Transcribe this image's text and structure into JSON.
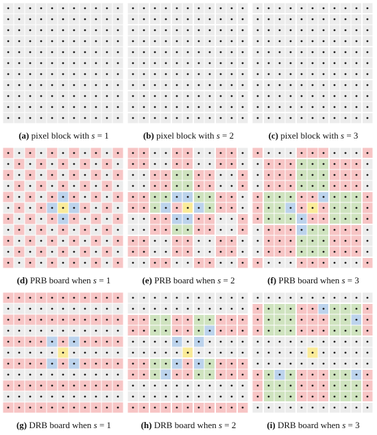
{
  "colors": {
    "gray": "#ececec",
    "red": "#f7c5c5",
    "green": "#cfe3bf",
    "blue": "#bcd3ec",
    "yellow": "#faeb99",
    "dot": "#1a1a1a",
    "gap": "#ffffff"
  },
  "board": {
    "rows": 11,
    "cols": 11,
    "center": [
      5,
      5
    ]
  },
  "panels": [
    {
      "id": "a",
      "letter": "(a)",
      "text": "pixel block with",
      "s": 1,
      "kind": "pixel"
    },
    {
      "id": "b",
      "letter": "(b)",
      "text": "pixel block with",
      "s": 2,
      "kind": "pixel"
    },
    {
      "id": "c",
      "letter": "(c)",
      "text": "pixel block with",
      "s": 3,
      "kind": "pixel"
    },
    {
      "id": "d",
      "letter": "(d)",
      "text": "PRB board when",
      "s": 1,
      "kind": "prb"
    },
    {
      "id": "e",
      "letter": "(e)",
      "text": "PRB board when",
      "s": 2,
      "kind": "prb"
    },
    {
      "id": "f",
      "letter": "(f)",
      "text": "PRB board when",
      "s": 3,
      "kind": "prb"
    },
    {
      "id": "g",
      "letter": "(g)",
      "text": "DRB board when",
      "s": 1,
      "kind": "drb"
    },
    {
      "id": "h",
      "letter": "(h)",
      "text": "DRB board when",
      "s": 2,
      "kind": "drb"
    },
    {
      "id": "i",
      "letter": "(i)",
      "text": "DRB board when",
      "s": 3,
      "kind": "drb"
    }
  ]
}
